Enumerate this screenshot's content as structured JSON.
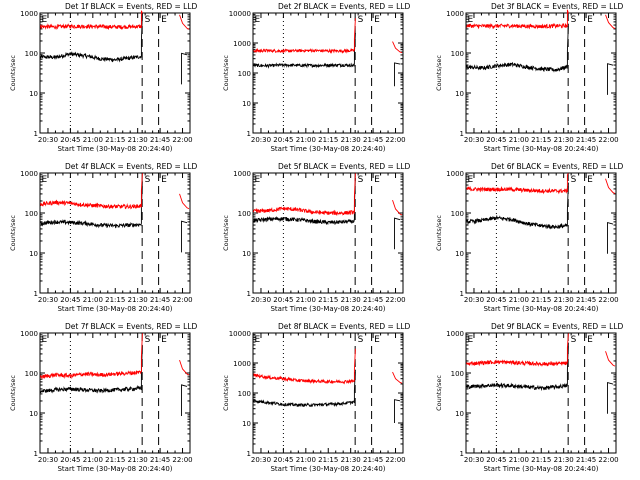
{
  "figure": {
    "panel_titles": [
      "Det 1f BLACK = Events, RED = LLD",
      "Det 2f BLACK = Events, RED = LLD",
      "Det 3f BLACK = Events, RED = LLD",
      "Det 4f BLACK = Events, RED = LLD",
      "Det 5f BLACK = Events, RED = LLD",
      "Det 6f BLACK = Events, RED = LLD",
      "Det 7f BLACK = Events, RED = LLD",
      "Det 8f BLACK = Events, RED = LLD",
      "Det 9f BLACK = Events, RED = LLD"
    ],
    "ylabel": "Counts/sec",
    "xlabel": "Start Time (30-May-08 20:24:40)",
    "xticks": [
      "20:30",
      "20:45",
      "21:00",
      "21:15",
      "21:30",
      "21:45",
      "22:00"
    ],
    "yticks": [
      "1",
      "10",
      "100",
      "1000",
      "10000"
    ],
    "markers": [
      "E",
      "S",
      "E"
    ],
    "colors": {
      "events": "#000000",
      "lld": "#ff0000",
      "axes": "#000000"
    }
  },
  "chart_data": [
    {
      "type": "line",
      "title": "Det 1f BLACK = Events, RED = LLD",
      "xlabel": "Start Time (30-May-08 20:24:40)",
      "ylabel": "Counts/sec",
      "yscale": "log",
      "ylim": [
        1,
        1000
      ],
      "xlim": [
        "20:24:40",
        "22:05"
      ],
      "x": [
        "20:25",
        "20:35",
        "20:45",
        "20:55",
        "21:05",
        "21:15",
        "21:25",
        "21:32"
      ],
      "series": [
        {
          "name": "Events",
          "values": [
            80,
            78,
            95,
            85,
            72,
            68,
            75,
            82
          ]
        },
        {
          "name": "LLD",
          "values": [
            460,
            450,
            470,
            465,
            455,
            450,
            455,
            460
          ]
        }
      ],
      "vlines_dotted": [
        "20:45"
      ],
      "vlines_dashed": [
        "21:33",
        "21:44"
      ],
      "markers": [
        {
          "label": "E",
          "x": "20:25"
        },
        {
          "label": "S",
          "x": "21:34"
        },
        {
          "label": "E",
          "x": "21:45"
        }
      ]
    },
    {
      "type": "line",
      "title": "Det 2f BLACK = Events, RED = LLD",
      "xlabel": "Start Time (30-May-08 20:24:40)",
      "ylabel": "Counts/sec",
      "yscale": "log",
      "ylim": [
        1,
        10000
      ],
      "xlim": [
        "20:24:40",
        "22:05"
      ],
      "x": [
        "20:25",
        "20:35",
        "20:45",
        "20:55",
        "21:05",
        "21:15",
        "21:25",
        "21:32"
      ],
      "series": [
        {
          "name": "Events",
          "values": [
            180,
            175,
            185,
            180,
            178,
            182,
            185,
            180
          ]
        },
        {
          "name": "LLD",
          "values": [
            550,
            560,
            540,
            555,
            560,
            545,
            550,
            560
          ]
        }
      ],
      "vlines_dotted": [
        "20:45"
      ],
      "vlines_dashed": [
        "21:33",
        "21:44"
      ],
      "markers": [
        {
          "label": "E",
          "x": "20:25"
        },
        {
          "label": "S",
          "x": "21:34"
        },
        {
          "label": "E",
          "x": "21:45"
        }
      ]
    },
    {
      "type": "line",
      "title": "Det 3f BLACK = Events, RED = LLD",
      "xlabel": "Start Time (30-May-08 20:24:40)",
      "ylabel": "Counts/sec",
      "yscale": "log",
      "ylim": [
        1,
        1000
      ],
      "xlim": [
        "20:24:40",
        "22:05"
      ],
      "x": [
        "20:25",
        "20:35",
        "20:45",
        "20:55",
        "21:05",
        "21:15",
        "21:25",
        "21:32"
      ],
      "series": [
        {
          "name": "Events",
          "values": [
            45,
            42,
            48,
            52,
            45,
            40,
            38,
            45
          ]
        },
        {
          "name": "LLD",
          "values": [
            480,
            470,
            475,
            480,
            470,
            465,
            475,
            480
          ]
        }
      ],
      "vlines_dotted": [
        "20:45"
      ],
      "vlines_dashed": [
        "21:33",
        "21:44"
      ],
      "markers": [
        {
          "label": "E",
          "x": "20:25"
        },
        {
          "label": "S",
          "x": "21:34"
        },
        {
          "label": "E",
          "x": "21:45"
        }
      ]
    },
    {
      "type": "line",
      "title": "Det 4f BLACK = Events, RED = LLD",
      "xlabel": "Start Time (30-May-08 20:24:40)",
      "ylabel": "Counts/sec",
      "yscale": "log",
      "ylim": [
        1,
        1000
      ],
      "xlim": [
        "20:24:40",
        "22:05"
      ],
      "x": [
        "20:25",
        "20:35",
        "20:45",
        "20:55",
        "21:05",
        "21:15",
        "21:25",
        "21:32"
      ],
      "series": [
        {
          "name": "Events",
          "values": [
            55,
            60,
            58,
            55,
            50,
            48,
            50,
            52
          ]
        },
        {
          "name": "LLD",
          "values": [
            165,
            185,
            175,
            160,
            150,
            145,
            145,
            150
          ]
        }
      ],
      "vlines_dotted": [
        "20:45"
      ],
      "vlines_dashed": [
        "21:33",
        "21:44"
      ],
      "markers": [
        {
          "label": "E",
          "x": "20:25"
        },
        {
          "label": "S",
          "x": "21:34"
        },
        {
          "label": "E",
          "x": "21:45"
        }
      ]
    },
    {
      "type": "line",
      "title": "Det 5f BLACK = Events, RED = LLD",
      "xlabel": "Start Time (30-May-08 20:24:40)",
      "ylabel": "Counts/sec",
      "yscale": "log",
      "ylim": [
        1,
        1000
      ],
      "xlim": [
        "20:24:40",
        "22:05"
      ],
      "x": [
        "20:25",
        "20:35",
        "20:45",
        "20:55",
        "21:05",
        "21:15",
        "21:25",
        "21:32"
      ],
      "series": [
        {
          "name": "Events",
          "values": [
            65,
            70,
            72,
            68,
            62,
            58,
            60,
            62
          ]
        },
        {
          "name": "LLD",
          "values": [
            110,
            115,
            130,
            120,
            105,
            100,
            100,
            105
          ]
        }
      ],
      "vlines_dotted": [
        "20:45"
      ],
      "vlines_dashed": [
        "21:33",
        "21:44"
      ],
      "markers": [
        {
          "label": "E",
          "x": "20:25"
        },
        {
          "label": "S",
          "x": "21:34"
        },
        {
          "label": "E",
          "x": "21:45"
        }
      ]
    },
    {
      "type": "line",
      "title": "Det 6f BLACK = Events, RED = LLD",
      "xlabel": "Start Time (30-May-08 20:24:40)",
      "ylabel": "Counts/sec",
      "yscale": "log",
      "ylim": [
        1,
        1000
      ],
      "xlim": [
        "20:24:40",
        "22:05"
      ],
      "x": [
        "20:25",
        "20:35",
        "20:45",
        "20:55",
        "21:05",
        "21:15",
        "21:25",
        "21:32"
      ],
      "series": [
        {
          "name": "Events",
          "values": [
            60,
            65,
            75,
            70,
            55,
            48,
            45,
            48
          ]
        },
        {
          "name": "LLD",
          "values": [
            400,
            390,
            395,
            390,
            370,
            360,
            355,
            360
          ]
        }
      ],
      "vlines_dotted": [
        "20:45"
      ],
      "vlines_dashed": [
        "21:33",
        "21:44"
      ],
      "markers": [
        {
          "label": "E",
          "x": "20:25"
        },
        {
          "label": "S",
          "x": "21:34"
        },
        {
          "label": "E",
          "x": "21:45"
        }
      ]
    },
    {
      "type": "line",
      "title": "Det 7f BLACK = Events, RED = LLD",
      "xlabel": "Start Time (30-May-08 20:24:40)",
      "ylabel": "Counts/sec",
      "yscale": "log",
      "ylim": [
        1,
        1000
      ],
      "xlim": [
        "20:24:40",
        "22:05"
      ],
      "x": [
        "20:25",
        "20:35",
        "20:45",
        "20:55",
        "21:05",
        "21:15",
        "21:25",
        "21:32"
      ],
      "series": [
        {
          "name": "Events",
          "values": [
            35,
            38,
            40,
            38,
            36,
            38,
            40,
            42
          ]
        },
        {
          "name": "LLD",
          "values": [
            80,
            90,
            85,
            95,
            90,
            95,
            100,
            105
          ]
        }
      ],
      "vlines_dotted": [
        "20:45"
      ],
      "vlines_dashed": [
        "21:33",
        "21:44"
      ],
      "markers": [
        {
          "label": "E",
          "x": "20:25"
        },
        {
          "label": "S",
          "x": "21:34"
        },
        {
          "label": "E",
          "x": "21:45"
        }
      ]
    },
    {
      "type": "line",
      "title": "Det 8f BLACK = Events, RED = LLD",
      "xlabel": "Start Time (30-May-08 20:24:40)",
      "ylabel": "Counts/sec",
      "yscale": "log",
      "ylim": [
        1,
        10000
      ],
      "xlim": [
        "20:24:40",
        "22:05"
      ],
      "x": [
        "20:25",
        "20:35",
        "20:45",
        "20:55",
        "21:05",
        "21:15",
        "21:25",
        "21:32"
      ],
      "series": [
        {
          "name": "Events",
          "values": [
            55,
            48,
            42,
            40,
            40,
            42,
            45,
            50
          ]
        },
        {
          "name": "LLD",
          "values": [
            400,
            330,
            300,
            260,
            250,
            240,
            240,
            250
          ]
        }
      ],
      "vlines_dotted": [
        "20:45"
      ],
      "vlines_dashed": [
        "21:33",
        "21:44"
      ],
      "markers": [
        {
          "label": "E",
          "x": "20:25"
        },
        {
          "label": "S",
          "x": "21:34"
        },
        {
          "label": "E",
          "x": "21:45"
        }
      ]
    },
    {
      "type": "line",
      "title": "Det 9f BLACK = Events, RED = LLD",
      "xlabel": "Start Time (30-May-08 20:24:40)",
      "ylabel": "Counts/sec",
      "yscale": "log",
      "ylim": [
        1,
        1000
      ],
      "xlim": [
        "20:24:40",
        "22:05"
      ],
      "x": [
        "20:25",
        "20:35",
        "20:45",
        "20:55",
        "21:05",
        "21:15",
        "21:25",
        "21:32"
      ],
      "series": [
        {
          "name": "Events",
          "values": [
            45,
            48,
            50,
            48,
            45,
            42,
            45,
            48
          ]
        },
        {
          "name": "LLD",
          "values": [
            170,
            180,
            190,
            185,
            175,
            170,
            170,
            175
          ]
        }
      ],
      "vlines_dotted": [
        "20:45"
      ],
      "vlines_dashed": [
        "21:33",
        "21:44"
      ],
      "markers": [
        {
          "label": "E",
          "x": "20:25"
        },
        {
          "label": "S",
          "x": "21:34"
        },
        {
          "label": "E",
          "x": "21:45"
        }
      ]
    }
  ]
}
